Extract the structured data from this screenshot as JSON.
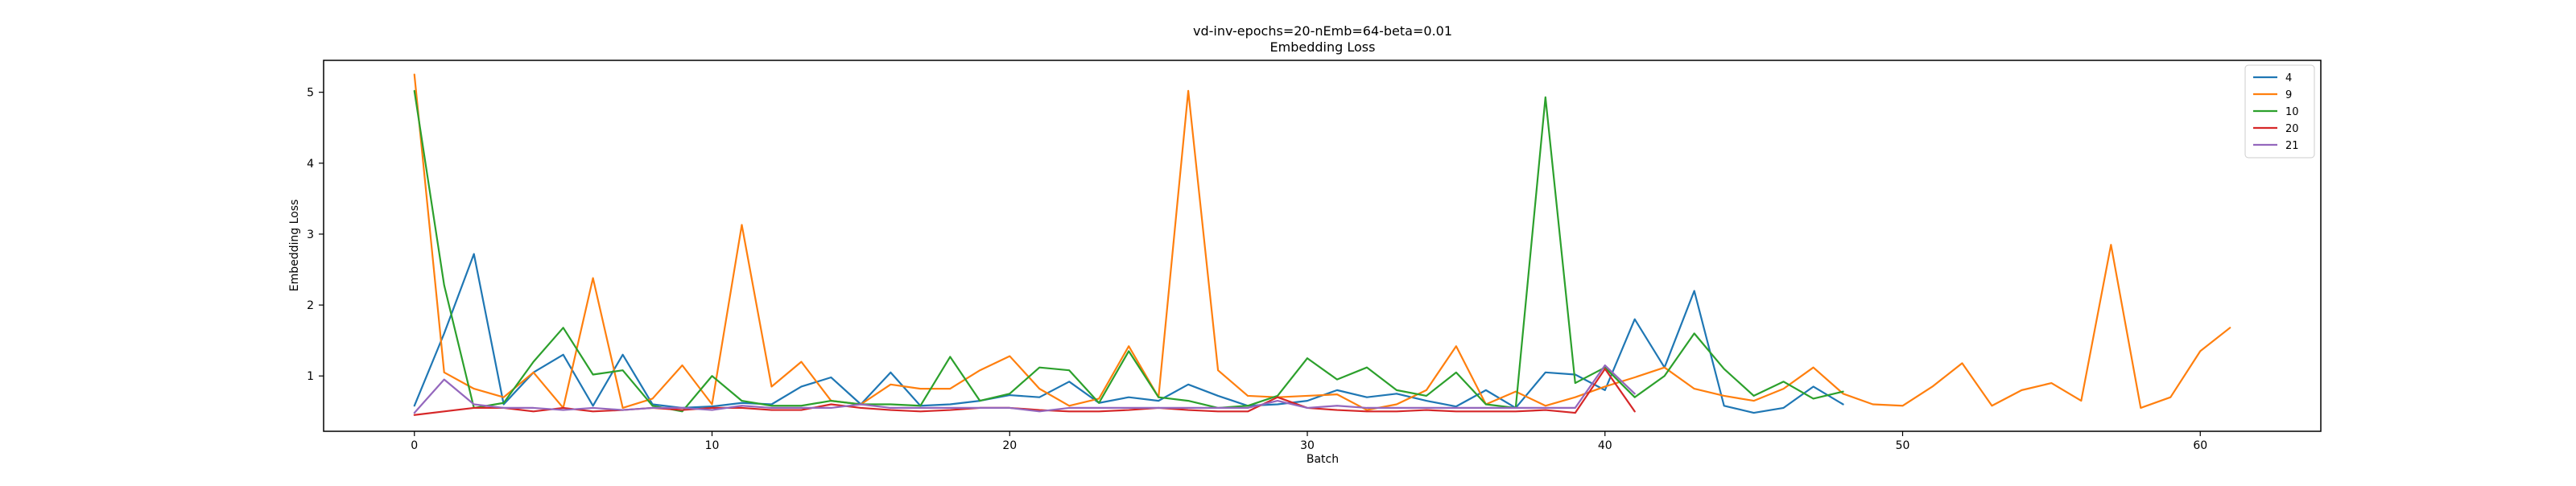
{
  "chart_data": {
    "type": "line",
    "title": "vd-inv-epochs=20-nEmb=64-beta=0.01",
    "subtitle": "Embedding Loss",
    "xlabel": "Batch",
    "ylabel": "Embedding Loss",
    "xlim": [
      -3.05,
      64.05
    ],
    "ylim": [
      0.22,
      5.45
    ],
    "xticks": [
      0,
      10,
      20,
      30,
      40,
      50,
      60
    ],
    "yticks": [
      1,
      2,
      3,
      4,
      5
    ],
    "grid": false,
    "legend_position": "top-right",
    "series": [
      {
        "name": "4",
        "color": "#1f77b4",
        "values": [
          0.58,
          1.6,
          2.72,
          0.6,
          1.05,
          1.3,
          0.58,
          1.3,
          0.6,
          0.55,
          0.57,
          0.62,
          0.6,
          0.85,
          0.98,
          0.6,
          1.05,
          0.58,
          0.6,
          0.65,
          0.73,
          0.7,
          0.92,
          0.62,
          0.7,
          0.65,
          0.88,
          0.72,
          0.58,
          0.6,
          0.65,
          0.8,
          0.7,
          0.75,
          0.65,
          0.57,
          0.8,
          0.55,
          1.05,
          1.02,
          0.8,
          1.8,
          1.12,
          2.2,
          0.58,
          0.48,
          0.55,
          0.85,
          0.6
        ]
      },
      {
        "name": "9",
        "color": "#ff7f0e",
        "values": [
          5.25,
          1.05,
          0.82,
          0.7,
          1.05,
          0.55,
          2.38,
          0.55,
          0.68,
          1.15,
          0.6,
          3.13,
          0.85,
          1.2,
          0.65,
          0.6,
          0.88,
          0.82,
          0.82,
          1.08,
          1.28,
          0.82,
          0.58,
          0.68,
          1.42,
          0.7,
          5.02,
          1.08,
          0.72,
          0.7,
          0.72,
          0.74,
          0.52,
          0.6,
          0.8,
          1.42,
          0.6,
          0.78,
          0.58,
          0.7,
          0.85,
          0.98,
          1.12,
          0.82,
          0.72,
          0.65,
          0.82,
          1.12,
          0.75,
          0.6,
          0.58,
          0.85,
          1.18,
          0.58,
          0.8,
          0.9,
          0.65,
          2.85,
          0.55,
          0.7,
          1.35,
          1.68
        ]
      },
      {
        "name": "10",
        "color": "#2ca02c",
        "values": [
          5.02,
          2.28,
          0.55,
          0.62,
          1.2,
          1.68,
          1.02,
          1.08,
          0.58,
          0.5,
          1.0,
          0.65,
          0.58,
          0.58,
          0.65,
          0.6,
          0.6,
          0.58,
          1.27,
          0.65,
          0.75,
          1.12,
          1.08,
          0.62,
          1.35,
          0.7,
          0.65,
          0.55,
          0.58,
          0.72,
          1.25,
          0.95,
          1.12,
          0.8,
          0.72,
          1.05,
          0.6,
          0.55,
          4.93,
          0.9,
          1.12,
          0.7,
          1.0,
          1.6,
          1.1,
          0.72,
          0.92,
          0.68,
          0.78
        ]
      },
      {
        "name": "20",
        "color": "#d62728",
        "values": [
          0.45,
          0.5,
          0.55,
          0.55,
          0.5,
          0.55,
          0.5,
          0.52,
          0.55,
          0.52,
          0.55,
          0.55,
          0.52,
          0.52,
          0.6,
          0.55,
          0.52,
          0.5,
          0.52,
          0.55,
          0.55,
          0.52,
          0.5,
          0.5,
          0.52,
          0.55,
          0.52,
          0.5,
          0.5,
          0.7,
          0.55,
          0.52,
          0.5,
          0.5,
          0.52,
          0.5,
          0.5,
          0.5,
          0.52,
          0.48,
          1.1,
          0.5
        ]
      },
      {
        "name": "21",
        "color": "#9467bd",
        "values": [
          0.48,
          0.95,
          0.6,
          0.55,
          0.55,
          0.52,
          0.55,
          0.52,
          0.55,
          0.55,
          0.52,
          0.58,
          0.55,
          0.55,
          0.55,
          0.6,
          0.55,
          0.55,
          0.55,
          0.55,
          0.55,
          0.5,
          0.55,
          0.55,
          0.55,
          0.55,
          0.55,
          0.55,
          0.55,
          0.65,
          0.55,
          0.58,
          0.55,
          0.55,
          0.55,
          0.55,
          0.55,
          0.55,
          0.55,
          0.55,
          1.15,
          0.75
        ]
      }
    ]
  }
}
